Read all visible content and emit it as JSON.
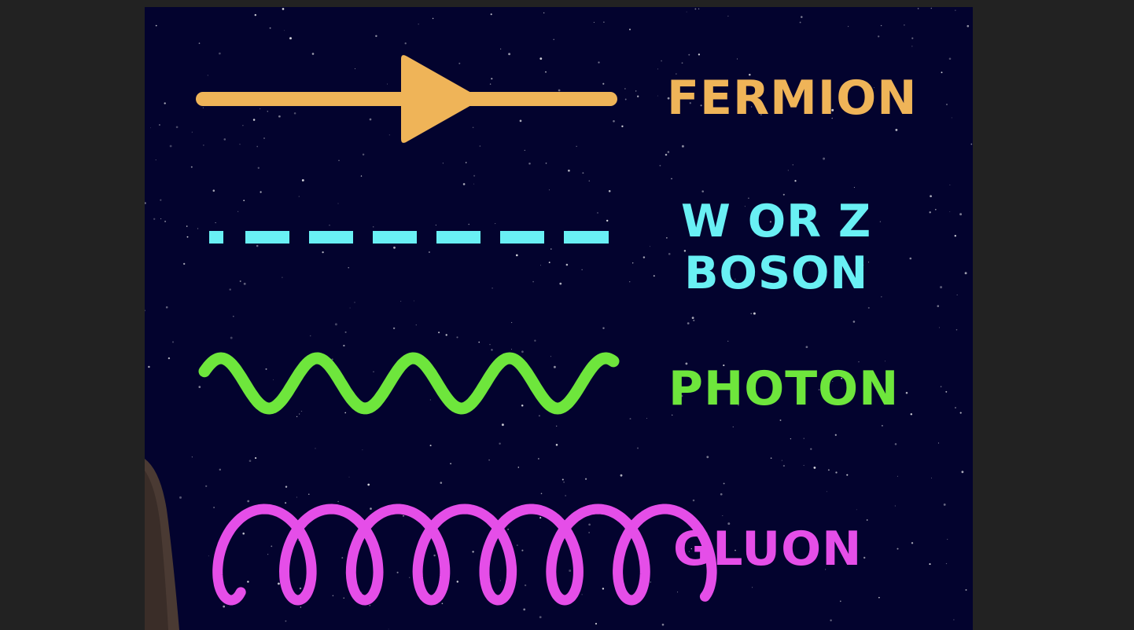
{
  "background": {
    "color": "#03032e",
    "page_color": "#222222"
  },
  "legend": [
    {
      "id": "fermion",
      "label": "FERMION",
      "line_style": "solid line with arrow",
      "color": "#efb458"
    },
    {
      "id": "wz",
      "label_line1": "W OR Z",
      "label_line2": "BOSON",
      "line_style": "dashed line",
      "color": "#69f0f4"
    },
    {
      "id": "photon",
      "label": "PHOTON",
      "line_style": "wavy line",
      "color": "#6ee63c"
    },
    {
      "id": "gluon",
      "label": "GLUON",
      "line_style": "coiled line",
      "color": "#e54ee8"
    }
  ]
}
